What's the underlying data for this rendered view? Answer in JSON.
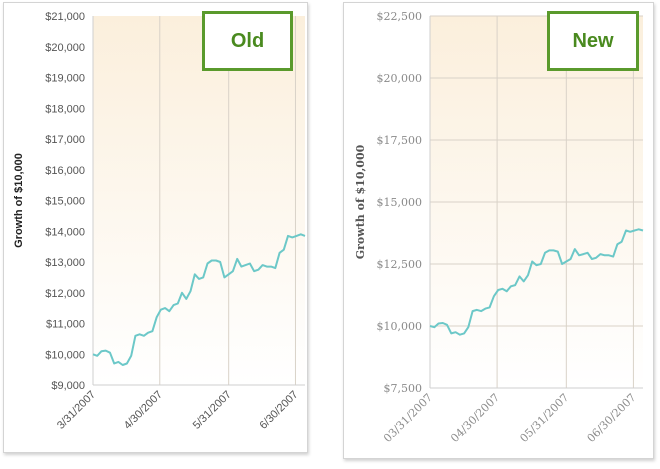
{
  "chart_data": [
    {
      "type": "line",
      "badge": "Old",
      "ylabel": "Growth of $10,000",
      "ylim": [
        9000,
        21000
      ],
      "yticks": [
        9000,
        10000,
        11000,
        12000,
        13000,
        14000,
        15000,
        16000,
        17000,
        18000,
        19000,
        20000,
        21000
      ],
      "ytick_labels": [
        "$9,000",
        "$10,000",
        "$11,000",
        "$12,000",
        "$13,000",
        "$14,000",
        "$15,000",
        "$16,000",
        "$17,000",
        "$18,000",
        "$19,000",
        "$20,000",
        "$21,000"
      ],
      "xlim": [
        0,
        100
      ],
      "xticks": [
        0,
        31.5,
        64,
        95.5
      ],
      "xtick_labels": [
        "3/31/2007",
        "4/30/2007",
        "5/31/2007",
        "6/30/2007"
      ],
      "grid": "vertical",
      "colors": {
        "line": "#6cc8c8",
        "background_top": "#fbefdc",
        "grid": "#d9d2c8",
        "badge_border": "#5a9a2c",
        "badge_text": "#4a8a1f"
      },
      "x": [
        0,
        2,
        4,
        6,
        8,
        10,
        12,
        14,
        16,
        18,
        20,
        22,
        24,
        26,
        28,
        30,
        32,
        34,
        36,
        38,
        40,
        42,
        44,
        46,
        48,
        50,
        52,
        54,
        56,
        58,
        60,
        62,
        64,
        66,
        68,
        70,
        72,
        74,
        76,
        78,
        80,
        82,
        84,
        86,
        88,
        90,
        92,
        94,
        96,
        98,
        100
      ],
      "y": [
        10000,
        9950,
        10100,
        10120,
        10050,
        9700,
        9750,
        9650,
        9700,
        9950,
        10600,
        10650,
        10600,
        10700,
        10750,
        11200,
        11450,
        11500,
        11400,
        11600,
        11650,
        12000,
        11800,
        12050,
        12600,
        12450,
        12500,
        12950,
        13050,
        13050,
        13000,
        12500,
        12600,
        12700,
        13100,
        12850,
        12900,
        12950,
        12700,
        12750,
        12900,
        12850,
        12850,
        12800,
        13300,
        13400,
        13850,
        13800,
        13850,
        13900,
        13850
      ]
    },
    {
      "type": "line",
      "badge": "New",
      "ylabel": "Growth of $10,000",
      "ylim": [
        7500,
        22500
      ],
      "yticks": [
        7500,
        10000,
        12500,
        15000,
        17500,
        20000,
        22500
      ],
      "ytick_labels": [
        "$7,500",
        "$10,000",
        "$12,500",
        "$15,000",
        "$17,500",
        "$20,000",
        "$22,500"
      ],
      "xlim": [
        0,
        100
      ],
      "xticks": [
        0,
        31.5,
        64,
        95.5
      ],
      "xtick_labels": [
        "03/31/2007",
        "04/30/2007",
        "05/31/2007",
        "06/30/2007"
      ],
      "grid": "both",
      "colors": {
        "line": "#6cc8c8",
        "background_top": "#fbefdc",
        "grid": "#d9d2c8",
        "badge_border": "#5a9a2c",
        "badge_text": "#4a8a1f"
      },
      "x": [
        0,
        2,
        4,
        6,
        8,
        10,
        12,
        14,
        16,
        18,
        20,
        22,
        24,
        26,
        28,
        30,
        32,
        34,
        36,
        38,
        40,
        42,
        44,
        46,
        48,
        50,
        52,
        54,
        56,
        58,
        60,
        62,
        64,
        66,
        68,
        70,
        72,
        74,
        76,
        78,
        80,
        82,
        84,
        86,
        88,
        90,
        92,
        94,
        96,
        98,
        100
      ],
      "y": [
        10000,
        9950,
        10100,
        10120,
        10050,
        9700,
        9750,
        9650,
        9700,
        9950,
        10600,
        10650,
        10600,
        10700,
        10750,
        11200,
        11450,
        11500,
        11400,
        11600,
        11650,
        12000,
        11800,
        12050,
        12600,
        12450,
        12500,
        12950,
        13050,
        13050,
        13000,
        12500,
        12600,
        12700,
        13100,
        12850,
        12900,
        12950,
        12700,
        12750,
        12900,
        12850,
        12850,
        12800,
        13300,
        13400,
        13850,
        13800,
        13850,
        13900,
        13850
      ]
    }
  ]
}
